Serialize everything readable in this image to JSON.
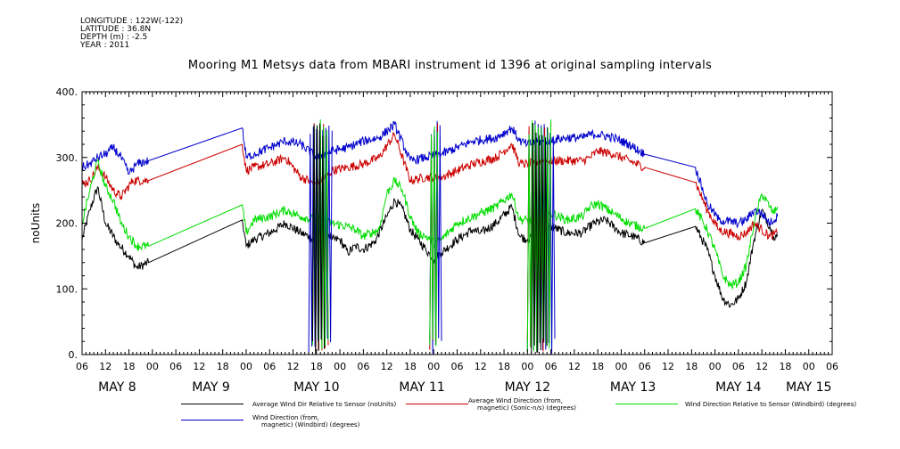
{
  "header": {
    "meta_lines": [
      "LONGITUDE : 122W(-122)",
      "LATITUDE : 36.8N",
      "DEPTH (m) : -2.5",
      "YEAR : 2011"
    ],
    "title": "Mooring M1 Metsys data from MBARI instrument id 1396 at original sampling intervals"
  },
  "chart_data": {
    "type": "line",
    "ylabel": "noUnits",
    "ylim": [
      0,
      400
    ],
    "yticks": [
      0,
      100,
      200,
      300,
      400
    ],
    "ytick_labels": [
      "0.",
      "100.",
      "200.",
      "300.",
      "400."
    ],
    "xlim_hours": [
      0,
      192
    ],
    "hour_ticks": [
      {
        "h": 0,
        "label": "06"
      },
      {
        "h": 6,
        "label": "12"
      },
      {
        "h": 12,
        "label": "18"
      },
      {
        "h": 18,
        "label": "00"
      },
      {
        "h": 24,
        "label": "06"
      },
      {
        "h": 30,
        "label": "12"
      },
      {
        "h": 36,
        "label": "18"
      },
      {
        "h": 42,
        "label": "00"
      },
      {
        "h": 48,
        "label": "06"
      },
      {
        "h": 54,
        "label": "12"
      },
      {
        "h": 60,
        "label": "18"
      },
      {
        "h": 66,
        "label": "00"
      },
      {
        "h": 72,
        "label": "06"
      },
      {
        "h": 78,
        "label": "12"
      },
      {
        "h": 84,
        "label": "18"
      },
      {
        "h": 90,
        "label": "00"
      },
      {
        "h": 96,
        "label": "06"
      },
      {
        "h": 102,
        "label": "12"
      },
      {
        "h": 108,
        "label": "18"
      },
      {
        "h": 114,
        "label": "00"
      },
      {
        "h": 120,
        "label": "06"
      },
      {
        "h": 126,
        "label": "12"
      },
      {
        "h": 132,
        "label": "18"
      },
      {
        "h": 138,
        "label": "00"
      },
      {
        "h": 144,
        "label": "06"
      },
      {
        "h": 150,
        "label": "12"
      },
      {
        "h": 156,
        "label": "18"
      },
      {
        "h": 162,
        "label": "00"
      },
      {
        "h": 168,
        "label": "06"
      },
      {
        "h": 174,
        "label": "12"
      },
      {
        "h": 180,
        "label": "18"
      },
      {
        "h": 186,
        "label": "00"
      },
      {
        "h": 192,
        "label": "06"
      }
    ],
    "day_labels": [
      {
        "h": 9,
        "label": "MAY  8"
      },
      {
        "h": 33,
        "label": "MAY  9"
      },
      {
        "h": 60,
        "label": "MAY 10"
      },
      {
        "h": 87,
        "label": "MAY 11"
      },
      {
        "h": 114,
        "label": "MAY 12"
      },
      {
        "h": 141,
        "label": "MAY 13"
      },
      {
        "h": 168,
        "label": "MAY 14"
      },
      {
        "h": 186,
        "label": "MAY 15"
      }
    ],
    "series": [
      {
        "name": "Average Wind Dir Relative to Sensor (noUnits)",
        "color": "#000000",
        "points": [
          [
            0,
            175
          ],
          [
            2,
            220
          ],
          [
            4,
            255
          ],
          [
            6,
            200
          ],
          [
            9,
            170
          ],
          [
            12,
            150
          ],
          [
            14,
            132
          ],
          [
            17,
            140
          ],
          [
            41,
            205
          ],
          [
            42,
            165
          ],
          [
            44,
            175
          ],
          [
            48,
            185
          ],
          [
            52,
            200
          ],
          [
            56,
            185
          ],
          [
            58,
            180
          ],
          [
            60,
            170
          ],
          [
            62,
            195
          ],
          [
            64,
            175
          ],
          [
            66,
            175
          ],
          [
            68,
            155
          ],
          [
            70,
            165
          ],
          [
            72,
            160
          ],
          [
            75,
            172
          ],
          [
            78,
            210
          ],
          [
            80,
            235
          ],
          [
            82,
            222
          ],
          [
            84,
            190
          ],
          [
            86,
            175
          ],
          [
            88,
            160
          ],
          [
            90,
            145
          ],
          [
            92,
            155
          ],
          [
            96,
            175
          ],
          [
            100,
            190
          ],
          [
            102,
            185
          ],
          [
            106,
            200
          ],
          [
            110,
            225
          ],
          [
            112,
            180
          ],
          [
            114,
            175
          ],
          [
            117,
            185
          ],
          [
            120,
            195
          ],
          [
            124,
            185
          ],
          [
            128,
            185
          ],
          [
            131,
            200
          ],
          [
            134,
            205
          ],
          [
            138,
            185
          ],
          [
            141,
            180
          ],
          [
            144,
            170
          ],
          [
            157,
            195
          ],
          [
            160,
            160
          ],
          [
            162,
            120
          ],
          [
            164,
            85
          ],
          [
            166,
            75
          ],
          [
            168,
            85
          ],
          [
            170,
            110
          ],
          [
            172,
            175
          ],
          [
            174,
            220
          ],
          [
            176,
            195
          ],
          [
            177,
            180
          ],
          [
            178,
            180
          ]
        ]
      },
      {
        "name": "Average Wind Direction (from, magnetic) (Sonic-n/s) (degrees)",
        "color": "#cc0000",
        "points": [
          [
            0,
            260
          ],
          [
            2,
            265
          ],
          [
            4,
            285
          ],
          [
            6,
            270
          ],
          [
            8,
            250
          ],
          [
            10,
            240
          ],
          [
            13,
            265
          ],
          [
            17,
            265
          ],
          [
            41,
            320
          ],
          [
            42,
            280
          ],
          [
            44,
            285
          ],
          [
            48,
            290
          ],
          [
            52,
            300
          ],
          [
            56,
            270
          ],
          [
            60,
            260
          ],
          [
            64,
            280
          ],
          [
            68,
            285
          ],
          [
            72,
            290
          ],
          [
            76,
            300
          ],
          [
            80,
            335
          ],
          [
            84,
            265
          ],
          [
            88,
            270
          ],
          [
            92,
            270
          ],
          [
            96,
            280
          ],
          [
            100,
            290
          ],
          [
            106,
            300
          ],
          [
            110,
            320
          ],
          [
            112,
            290
          ],
          [
            114,
            290
          ],
          [
            118,
            295
          ],
          [
            124,
            295
          ],
          [
            128,
            295
          ],
          [
            130,
            300
          ],
          [
            132,
            310
          ],
          [
            136,
            305
          ],
          [
            140,
            295
          ],
          [
            144,
            285
          ],
          [
            157,
            262
          ],
          [
            160,
            220
          ],
          [
            163,
            190
          ],
          [
            168,
            180
          ],
          [
            170,
            185
          ],
          [
            172,
            200
          ],
          [
            174,
            190
          ],
          [
            176,
            180
          ],
          [
            178,
            185
          ]
        ]
      },
      {
        "name": "Wind Direction Relative to Sensor (Windbird) (degrees)",
        "color": "#00dd00",
        "points": [
          [
            0,
            200
          ],
          [
            2,
            250
          ],
          [
            4,
            295
          ],
          [
            6,
            255
          ],
          [
            8,
            235
          ],
          [
            10,
            200
          ],
          [
            12,
            180
          ],
          [
            14,
            165
          ],
          [
            17,
            165
          ],
          [
            41,
            228
          ],
          [
            42,
            185
          ],
          [
            44,
            205
          ],
          [
            48,
            210
          ],
          [
            52,
            220
          ],
          [
            56,
            210
          ],
          [
            60,
            205
          ],
          [
            64,
            200
          ],
          [
            68,
            195
          ],
          [
            70,
            190
          ],
          [
            72,
            180
          ],
          [
            74,
            185
          ],
          [
            76,
            190
          ],
          [
            78,
            245
          ],
          [
            80,
            265
          ],
          [
            82,
            250
          ],
          [
            84,
            210
          ],
          [
            86,
            185
          ],
          [
            88,
            180
          ],
          [
            90,
            170
          ],
          [
            92,
            175
          ],
          [
            96,
            200
          ],
          [
            100,
            210
          ],
          [
            102,
            215
          ],
          [
            106,
            225
          ],
          [
            110,
            245
          ],
          [
            112,
            205
          ],
          [
            114,
            205
          ],
          [
            118,
            200
          ],
          [
            120,
            215
          ],
          [
            124,
            205
          ],
          [
            128,
            210
          ],
          [
            130,
            225
          ],
          [
            132,
            230
          ],
          [
            136,
            215
          ],
          [
            140,
            200
          ],
          [
            144,
            192
          ],
          [
            157,
            222
          ],
          [
            160,
            190
          ],
          [
            162,
            160
          ],
          [
            164,
            120
          ],
          [
            166,
            105
          ],
          [
            168,
            110
          ],
          [
            170,
            135
          ],
          [
            172,
            200
          ],
          [
            174,
            245
          ],
          [
            176,
            225
          ],
          [
            177,
            215
          ],
          [
            178,
            225
          ]
        ]
      },
      {
        "name": "Wind Direction (from, magnetic) (Windbird) (degrees)",
        "color": "#0000cc",
        "points": [
          [
            0,
            285
          ],
          [
            2,
            290
          ],
          [
            4,
            300
          ],
          [
            6,
            305
          ],
          [
            8,
            315
          ],
          [
            10,
            300
          ],
          [
            12,
            275
          ],
          [
            14,
            290
          ],
          [
            17,
            295
          ],
          [
            41,
            345
          ],
          [
            42,
            300
          ],
          [
            44,
            305
          ],
          [
            48,
            315
          ],
          [
            52,
            325
          ],
          [
            56,
            320
          ],
          [
            60,
            300
          ],
          [
            64,
            310
          ],
          [
            68,
            315
          ],
          [
            72,
            325
          ],
          [
            76,
            330
          ],
          [
            80,
            350
          ],
          [
            84,
            295
          ],
          [
            88,
            300
          ],
          [
            92,
            305
          ],
          [
            96,
            315
          ],
          [
            100,
            325
          ],
          [
            106,
            330
          ],
          [
            110,
            345
          ],
          [
            112,
            325
          ],
          [
            114,
            320
          ],
          [
            118,
            325
          ],
          [
            124,
            330
          ],
          [
            128,
            330
          ],
          [
            130,
            335
          ],
          [
            132,
            335
          ],
          [
            136,
            330
          ],
          [
            140,
            320
          ],
          [
            144,
            305
          ],
          [
            157,
            285
          ],
          [
            160,
            230
          ],
          [
            163,
            205
          ],
          [
            168,
            200
          ],
          [
            170,
            205
          ],
          [
            172,
            220
          ],
          [
            174,
            215
          ],
          [
            176,
            200
          ],
          [
            178,
            210
          ]
        ]
      }
    ],
    "spikes": [
      {
        "h0": 58,
        "h1": 64,
        "color": "#0000cc"
      },
      {
        "h0": 59,
        "h1": 63,
        "color": "#cc0000"
      },
      {
        "h0": 59,
        "h1": 63,
        "color": "#00dd00"
      },
      {
        "h0": 59,
        "h1": 62,
        "color": "#000000"
      },
      {
        "h0": 89,
        "h1": 92,
        "color": "#0000cc"
      },
      {
        "h0": 89,
        "h1": 91,
        "color": "#cc0000"
      },
      {
        "h0": 89,
        "h1": 91,
        "color": "#00dd00"
      },
      {
        "h0": 114,
        "h1": 121,
        "color": "#0000cc"
      },
      {
        "h0": 114,
        "h1": 120,
        "color": "#cc0000"
      },
      {
        "h0": 114,
        "h1": 120,
        "color": "#00dd00"
      },
      {
        "h0": 115,
        "h1": 119,
        "color": "#000000"
      }
    ],
    "legend": [
      {
        "label_lines": [
          "Average Wind Dir Relative to Sensor (noUnits)"
        ],
        "color": "#000000"
      },
      {
        "label_lines": [
          "Average Wind Direction (from,",
          "magnetic) (Sonic-n/s) (degrees)"
        ],
        "color": "#cc0000"
      },
      {
        "label_lines": [
          "Wind Direction Relative to Sensor (Windbird) (degrees)"
        ],
        "color": "#00dd00"
      },
      {
        "label_lines": [
          "Wind Direction (from,",
          "magnetic) (Windbird) (degrees)"
        ],
        "color": "#0000cc"
      }
    ]
  }
}
